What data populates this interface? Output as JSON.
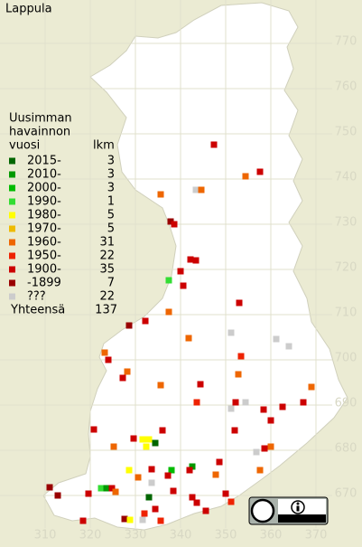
{
  "title": "Lappula",
  "legend": {
    "title": [
      "Uusimman",
      "havainnon",
      "vuosi"
    ],
    "count_header": "lkm",
    "entries": [
      {
        "label": "2015-",
        "color": "#006600",
        "count": 3
      },
      {
        "label": "2010-",
        "color": "#009900",
        "count": 3
      },
      {
        "label": "2000-",
        "color": "#00bb00",
        "count": 3
      },
      {
        "label": "1990-",
        "color": "#33dd33",
        "count": 1
      },
      {
        "label": "1980-",
        "color": "#ffff00",
        "count": 5
      },
      {
        "label": "1970-",
        "color": "#eebb00",
        "count": 5
      },
      {
        "label": "1960-",
        "color": "#ee6600",
        "count": 31
      },
      {
        "label": "1950-",
        "color": "#ee2200",
        "count": 22
      },
      {
        "label": "1900-",
        "color": "#cc0000",
        "count": 35
      },
      {
        "label": "-1899",
        "color": "#990000",
        "count": 7
      },
      {
        "label": "???",
        "color": "#cccccc",
        "count": 22
      }
    ],
    "total_label": "Yhteensä",
    "total": 137
  },
  "grid": {
    "xlim": [
      302,
      380
    ],
    "ylim": [
      661.8,
      779.6
    ],
    "xticks": [
      310,
      320,
      330,
      340,
      350,
      360,
      370
    ],
    "yticks": [
      670,
      680,
      690,
      700,
      710,
      720,
      730,
      740,
      750,
      760,
      770
    ]
  },
  "points": [
    [
      347.4,
      747.6,
      8
    ],
    [
      357.6,
      741.6,
      8
    ],
    [
      354.4,
      740.6,
      6
    ],
    [
      335.6,
      736.6,
      6
    ],
    [
      343.4,
      737.6,
      10
    ],
    [
      344.6,
      737.6,
      6
    ],
    [
      337.8,
      730.6,
      9
    ],
    [
      338.6,
      730,
      8
    ],
    [
      342.2,
      722.2,
      8
    ],
    [
      343.4,
      722,
      8
    ],
    [
      340,
      719.6,
      8
    ],
    [
      337.4,
      717.6,
      3
    ],
    [
      340.6,
      716.4,
      8
    ],
    [
      353,
      712.6,
      8
    ],
    [
      337.4,
      710.6,
      6
    ],
    [
      332.2,
      708.6,
      8
    ],
    [
      328.6,
      707.6,
      9
    ],
    [
      341.8,
      704.8,
      6
    ],
    [
      351.2,
      706,
      10
    ],
    [
      361.2,
      704.6,
      10
    ],
    [
      364,
      703,
      10
    ],
    [
      323.2,
      701.6,
      6
    ],
    [
      324,
      700,
      8
    ],
    [
      328.2,
      697.4,
      6
    ],
    [
      327.2,
      696,
      8
    ],
    [
      335.6,
      694.4,
      6
    ],
    [
      344.4,
      694.6,
      8
    ],
    [
      353.4,
      700.8,
      7
    ],
    [
      352.8,
      696.8,
      6
    ],
    [
      352.2,
      690.6,
      8
    ],
    [
      351.2,
      689.2,
      10
    ],
    [
      354.4,
      690.6,
      10
    ],
    [
      358.4,
      689,
      8
    ],
    [
      360,
      686.6,
      8
    ],
    [
      362.6,
      689.6,
      8
    ],
    [
      367.2,
      690.6,
      8
    ],
    [
      369,
      694,
      6
    ],
    [
      343.6,
      690.6,
      7
    ],
    [
      320.8,
      684.6,
      8
    ],
    [
      325.2,
      680.8,
      6
    ],
    [
      329.6,
      682.6,
      8
    ],
    [
      331.6,
      682.4,
      4
    ],
    [
      333,
      682.4,
      4
    ],
    [
      334.4,
      681.6,
      0
    ],
    [
      332.4,
      680.8,
      4
    ],
    [
      336,
      684.4,
      8
    ],
    [
      352,
      684.4,
      8
    ],
    [
      356.8,
      679.6,
      10
    ],
    [
      358.6,
      680.4,
      8
    ],
    [
      360,
      680.8,
      6
    ],
    [
      357.6,
      675.6,
      6
    ],
    [
      342.6,
      676.4,
      1
    ],
    [
      342,
      675.6,
      8
    ],
    [
      338,
      675.6,
      2
    ],
    [
      337.2,
      674.4,
      8
    ],
    [
      333.6,
      675.8,
      8
    ],
    [
      328.6,
      675.6,
      4
    ],
    [
      330.6,
      674,
      6
    ],
    [
      347.8,
      674.6,
      6
    ],
    [
      348.6,
      677.4,
      8
    ],
    [
      322.4,
      671.6,
      3
    ],
    [
      323.6,
      671.6,
      1
    ],
    [
      324.8,
      671.6,
      8
    ],
    [
      325.6,
      670.8,
      6
    ],
    [
      333.6,
      672.8,
      10
    ],
    [
      338.4,
      671,
      8
    ],
    [
      333,
      669.6,
      0
    ],
    [
      334.4,
      667,
      8
    ],
    [
      332,
      666,
      7
    ],
    [
      331.6,
      664.6,
      10
    ],
    [
      327.6,
      664.8,
      9
    ],
    [
      328.8,
      664.6,
      4
    ],
    [
      335.6,
      664.4,
      7
    ],
    [
      342.6,
      669.6,
      8
    ],
    [
      343.6,
      668.4,
      8
    ],
    [
      345.6,
      666.6,
      8
    ],
    [
      350,
      670.4,
      8
    ],
    [
      351.2,
      668.6,
      7
    ],
    [
      311,
      671.8,
      9
    ],
    [
      312.8,
      670,
      9
    ],
    [
      318.4,
      664.4,
      8
    ],
    [
      319.6,
      670.4,
      8
    ]
  ]
}
